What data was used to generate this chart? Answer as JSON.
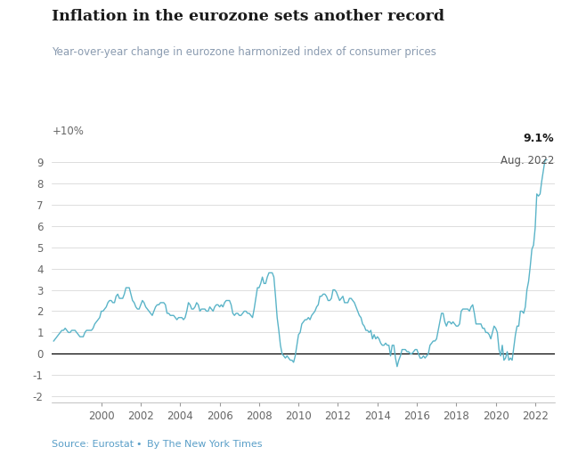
{
  "title": "Inflation in the eurozone sets another record",
  "subtitle": "Year-over-year change in eurozone harmonized index of consumer prices",
  "source_text": "Source: Eurostat",
  "byline": "By The New York Times",
  "line_color": "#5ab4c8",
  "title_color": "#1a1a1a",
  "subtitle_color": "#8a9bb0",
  "source_color": "#5a9fc8",
  "annotation_value": "9.1%",
  "annotation_date": "Aug. 2022",
  "ylim": [
    -2.3,
    10.3
  ],
  "yticks": [
    -2,
    -1,
    0,
    1,
    2,
    3,
    4,
    5,
    6,
    7,
    8,
    9
  ],
  "ylabel_top": "+10%",
  "xlim_start": 1997.5,
  "xlim_end": 2023.0,
  "background_color": "#ffffff",
  "dates": [
    1997.583,
    1997.667,
    1997.75,
    1997.833,
    1997.917,
    1998.0,
    1998.083,
    1998.167,
    1998.25,
    1998.333,
    1998.417,
    1998.5,
    1998.583,
    1998.667,
    1998.75,
    1998.833,
    1998.917,
    1999.0,
    1999.083,
    1999.167,
    1999.25,
    1999.333,
    1999.417,
    1999.5,
    1999.583,
    1999.667,
    1999.75,
    1999.833,
    1999.917,
    2000.0,
    2000.083,
    2000.167,
    2000.25,
    2000.333,
    2000.417,
    2000.5,
    2000.583,
    2000.667,
    2000.75,
    2000.833,
    2000.917,
    2001.0,
    2001.083,
    2001.167,
    2001.25,
    2001.333,
    2001.417,
    2001.5,
    2001.583,
    2001.667,
    2001.75,
    2001.833,
    2001.917,
    2002.0,
    2002.083,
    2002.167,
    2002.25,
    2002.333,
    2002.417,
    2002.5,
    2002.583,
    2002.667,
    2002.75,
    2002.833,
    2002.917,
    2003.0,
    2003.083,
    2003.167,
    2003.25,
    2003.333,
    2003.417,
    2003.5,
    2003.583,
    2003.667,
    2003.75,
    2003.833,
    2003.917,
    2004.0,
    2004.083,
    2004.167,
    2004.25,
    2004.333,
    2004.417,
    2004.5,
    2004.583,
    2004.667,
    2004.75,
    2004.833,
    2004.917,
    2005.0,
    2005.083,
    2005.167,
    2005.25,
    2005.333,
    2005.417,
    2005.5,
    2005.583,
    2005.667,
    2005.75,
    2005.833,
    2005.917,
    2006.0,
    2006.083,
    2006.167,
    2006.25,
    2006.333,
    2006.417,
    2006.5,
    2006.583,
    2006.667,
    2006.75,
    2006.833,
    2006.917,
    2007.0,
    2007.083,
    2007.167,
    2007.25,
    2007.333,
    2007.417,
    2007.5,
    2007.583,
    2007.667,
    2007.75,
    2007.833,
    2007.917,
    2008.0,
    2008.083,
    2008.167,
    2008.25,
    2008.333,
    2008.417,
    2008.5,
    2008.583,
    2008.667,
    2008.75,
    2008.833,
    2008.917,
    2009.0,
    2009.083,
    2009.167,
    2009.25,
    2009.333,
    2009.417,
    2009.5,
    2009.583,
    2009.667,
    2009.75,
    2009.833,
    2009.917,
    2010.0,
    2010.083,
    2010.167,
    2010.25,
    2010.333,
    2010.417,
    2010.5,
    2010.583,
    2010.667,
    2010.75,
    2010.833,
    2010.917,
    2011.0,
    2011.083,
    2011.167,
    2011.25,
    2011.333,
    2011.417,
    2011.5,
    2011.583,
    2011.667,
    2011.75,
    2011.833,
    2011.917,
    2012.0,
    2012.083,
    2012.167,
    2012.25,
    2012.333,
    2012.417,
    2012.5,
    2012.583,
    2012.667,
    2012.75,
    2012.833,
    2012.917,
    2013.0,
    2013.083,
    2013.167,
    2013.25,
    2013.333,
    2013.417,
    2013.5,
    2013.583,
    2013.667,
    2013.75,
    2013.833,
    2013.917,
    2014.0,
    2014.083,
    2014.167,
    2014.25,
    2014.333,
    2014.417,
    2014.5,
    2014.583,
    2014.667,
    2014.75,
    2014.833,
    2014.917,
    2015.0,
    2015.083,
    2015.167,
    2015.25,
    2015.333,
    2015.417,
    2015.5,
    2015.583,
    2015.667,
    2015.75,
    2015.833,
    2015.917,
    2016.0,
    2016.083,
    2016.167,
    2016.25,
    2016.333,
    2016.417,
    2016.5,
    2016.583,
    2016.667,
    2016.75,
    2016.833,
    2016.917,
    2017.0,
    2017.083,
    2017.167,
    2017.25,
    2017.333,
    2017.417,
    2017.5,
    2017.583,
    2017.667,
    2017.75,
    2017.833,
    2017.917,
    2018.0,
    2018.083,
    2018.167,
    2018.25,
    2018.333,
    2018.417,
    2018.5,
    2018.583,
    2018.667,
    2018.75,
    2018.833,
    2018.917,
    2019.0,
    2019.083,
    2019.167,
    2019.25,
    2019.333,
    2019.417,
    2019.5,
    2019.583,
    2019.667,
    2019.75,
    2019.833,
    2019.917,
    2020.0,
    2020.083,
    2020.167,
    2020.25,
    2020.333,
    2020.417,
    2020.5,
    2020.583,
    2020.667,
    2020.75,
    2020.833,
    2020.917,
    2021.0,
    2021.083,
    2021.167,
    2021.25,
    2021.333,
    2021.417,
    2021.5,
    2021.583,
    2021.667,
    2021.75,
    2021.833,
    2021.917,
    2022.0,
    2022.083,
    2022.167,
    2022.25,
    2022.333,
    2022.417,
    2022.5,
    2022.583
  ],
  "values": [
    0.6,
    0.7,
    0.8,
    0.9,
    1.0,
    1.1,
    1.1,
    1.2,
    1.1,
    1.0,
    1.0,
    1.1,
    1.1,
    1.1,
    1.0,
    0.9,
    0.8,
    0.8,
    0.8,
    1.0,
    1.1,
    1.1,
    1.1,
    1.1,
    1.2,
    1.4,
    1.5,
    1.6,
    1.7,
    2.0,
    2.0,
    2.1,
    2.2,
    2.4,
    2.5,
    2.5,
    2.4,
    2.4,
    2.7,
    2.8,
    2.6,
    2.6,
    2.6,
    2.8,
    3.1,
    3.1,
    3.1,
    2.8,
    2.5,
    2.4,
    2.2,
    2.1,
    2.1,
    2.3,
    2.5,
    2.4,
    2.2,
    2.1,
    2.0,
    1.9,
    1.8,
    2.0,
    2.2,
    2.3,
    2.3,
    2.4,
    2.4,
    2.4,
    2.3,
    1.9,
    1.9,
    1.8,
    1.8,
    1.8,
    1.7,
    1.6,
    1.7,
    1.7,
    1.7,
    1.6,
    1.7,
    2.0,
    2.4,
    2.3,
    2.1,
    2.1,
    2.2,
    2.4,
    2.3,
    2.0,
    2.1,
    2.1,
    2.1,
    2.0,
    2.0,
    2.2,
    2.1,
    2.0,
    2.2,
    2.3,
    2.3,
    2.2,
    2.3,
    2.2,
    2.4,
    2.5,
    2.5,
    2.5,
    2.3,
    1.9,
    1.8,
    1.9,
    1.9,
    1.8,
    1.8,
    1.9,
    2.0,
    2.0,
    1.9,
    1.9,
    1.8,
    1.7,
    2.1,
    2.6,
    3.1,
    3.1,
    3.3,
    3.6,
    3.3,
    3.3,
    3.6,
    3.8,
    3.8,
    3.8,
    3.6,
    2.7,
    1.7,
    1.1,
    0.4,
    0.0,
    -0.1,
    -0.2,
    -0.1,
    -0.2,
    -0.3,
    -0.3,
    -0.4,
    -0.1,
    0.4,
    0.9,
    1.0,
    1.4,
    1.5,
    1.6,
    1.6,
    1.7,
    1.6,
    1.8,
    1.9,
    2.0,
    2.2,
    2.3,
    2.7,
    2.7,
    2.8,
    2.8,
    2.7,
    2.5,
    2.5,
    2.6,
    3.0,
    3.0,
    2.9,
    2.7,
    2.5,
    2.6,
    2.7,
    2.4,
    2.4,
    2.4,
    2.6,
    2.6,
    2.5,
    2.4,
    2.2,
    2.0,
    1.8,
    1.7,
    1.4,
    1.3,
    1.1,
    1.1,
    1.0,
    1.1,
    0.7,
    0.9,
    0.7,
    0.8,
    0.7,
    0.5,
    0.4,
    0.4,
    0.5,
    0.4,
    0.4,
    -0.1,
    0.4,
    0.4,
    -0.2,
    -0.6,
    -0.3,
    -0.1,
    0.2,
    0.2,
    0.2,
    0.1,
    0.1,
    0.0,
    0.0,
    0.1,
    0.2,
    0.2,
    0.0,
    -0.2,
    -0.2,
    -0.1,
    -0.2,
    -0.1,
    0.0,
    0.4,
    0.5,
    0.6,
    0.6,
    0.7,
    1.1,
    1.5,
    1.9,
    1.9,
    1.5,
    1.3,
    1.5,
    1.5,
    1.4,
    1.5,
    1.4,
    1.3,
    1.3,
    1.4,
    2.0,
    2.1,
    2.1,
    2.1,
    2.1,
    2.0,
    2.2,
    2.3,
    1.9,
    1.4,
    1.4,
    1.4,
    1.4,
    1.2,
    1.2,
    1.0,
    1.0,
    0.9,
    0.7,
    1.0,
    1.3,
    1.2,
    1.0,
    0.2,
    -0.1,
    0.4,
    -0.3,
    -0.2,
    0.1,
    -0.3,
    -0.2,
    -0.3,
    0.3,
    0.9,
    1.3,
    1.3,
    2.0,
    2.0,
    1.9,
    2.2,
    3.0,
    3.4,
    4.1,
    4.9,
    5.1,
    5.9,
    7.5,
    7.4,
    7.5,
    8.1,
    8.6,
    9.1,
    9.1
  ]
}
